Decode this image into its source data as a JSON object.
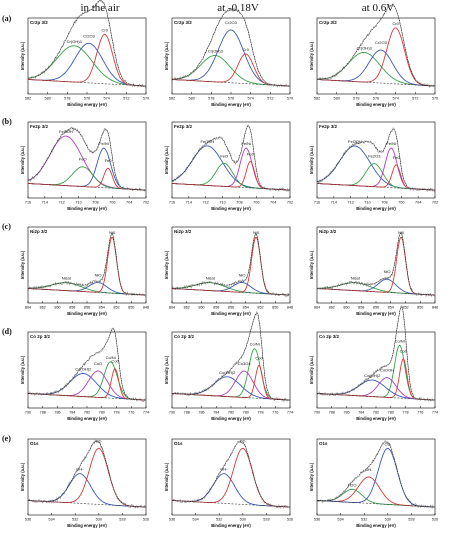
{
  "columns": [
    "in the air",
    "at -0.18V",
    "at 0.6V"
  ],
  "rows": [
    {
      "label": "(a)",
      "panel_title": "Cr2p 3/2"
    },
    {
      "label": "(b)",
      "panel_title": "Fe2p 3/2"
    },
    {
      "label": "(c)",
      "panel_title": "Ni2p 3/2"
    },
    {
      "label": "(d)",
      "panel_title": "Co 2p 3/2"
    },
    {
      "label": "(e)",
      "panel_title": "O1s"
    }
  ],
  "axis": {
    "ylabel": "Intensity (a.u.)",
    "xlabel": "Binding energy (eV)"
  },
  "colors": {
    "raw": "#8a8a8a",
    "fit": "#000000",
    "green": "#3aa04a",
    "red": "#d83a3a",
    "blue": "#3a5ab8",
    "purple": "#b040c0",
    "background": "#3a3a3a"
  },
  "chart_data": [
    {
      "type": "line",
      "row": "(a)",
      "column": "in the air",
      "title": "Cr2p 3/2",
      "xlim": [
        582,
        570
      ],
      "xticks": [
        582,
        580,
        578,
        576,
        574,
        572,
        570
      ],
      "xlabel": "Binding energy (eV)",
      "ylabel": "Intensity (a.u.)",
      "peaks": [
        {
          "name": "Cr(OH)3",
          "center": 577.3,
          "height": 0.55,
          "width": 1.8,
          "color": "green"
        },
        {
          "name": "Cr2O3",
          "center": 575.8,
          "height": 0.6,
          "width": 1.4,
          "color": "blue"
        },
        {
          "name": "Cr0",
          "center": 574.2,
          "height": 0.75,
          "width": 0.8,
          "color": "red"
        }
      ]
    },
    {
      "type": "line",
      "row": "(a)",
      "column": "at -0.18V",
      "title": "Cr2p 3/2",
      "xlim": [
        582,
        570
      ],
      "xticks": [
        582,
        580,
        578,
        576,
        574,
        572,
        570
      ],
      "xlabel": "Binding energy (eV)",
      "ylabel": "Intensity (a.u.)",
      "peaks": [
        {
          "name": "Cr(OH)3",
          "center": 577.6,
          "height": 0.4,
          "width": 1.5,
          "color": "green"
        },
        {
          "name": "Cr2O3",
          "center": 576.0,
          "height": 0.8,
          "width": 1.3,
          "color": "blue"
        },
        {
          "name": "Cr0",
          "center": 574.5,
          "height": 0.45,
          "width": 0.8,
          "color": "red"
        }
      ]
    },
    {
      "type": "line",
      "row": "(a)",
      "column": "at 0.6V",
      "title": "Cr2p 3/2",
      "xlim": [
        582,
        570
      ],
      "xticks": [
        582,
        580,
        578,
        576,
        574,
        572,
        570
      ],
      "xlabel": "Binding energy (eV)",
      "ylabel": "Intensity (a.u.)",
      "peaks": [
        {
          "name": "Cr(OH)3",
          "center": 577.2,
          "height": 0.45,
          "width": 1.6,
          "color": "green"
        },
        {
          "name": "Cr2O3",
          "center": 575.5,
          "height": 0.5,
          "width": 1.2,
          "color": "blue"
        },
        {
          "name": "Cr0",
          "center": 574.0,
          "height": 0.85,
          "width": 0.9,
          "color": "red"
        }
      ]
    },
    {
      "type": "line",
      "row": "(b)",
      "column": "in the air",
      "title": "Fe2p 3/2",
      "xlim": [
        716,
        702
      ],
      "xticks": [
        716,
        714,
        712,
        710,
        708,
        706,
        704,
        702
      ],
      "xlabel": "Binding energy (eV)",
      "ylabel": "Intensity (a.u.)",
      "peaks": [
        {
          "name": "FeOOH",
          "center": 711.5,
          "height": 0.75,
          "width": 1.9,
          "color": "purple"
        },
        {
          "name": "FeO",
          "center": 709.5,
          "height": 0.3,
          "width": 1.2,
          "color": "green"
        },
        {
          "name": "Fe/Ni",
          "center": 707.0,
          "height": 0.6,
          "width": 0.8,
          "color": "blue"
        },
        {
          "name": "Fe0",
          "center": 706.5,
          "height": 0.3,
          "width": 0.5,
          "color": "red"
        }
      ]
    },
    {
      "type": "line",
      "row": "(b)",
      "column": "at -0.18V",
      "title": "Fe2p 3/2",
      "xlim": [
        716,
        702
      ],
      "xticks": [
        716,
        714,
        712,
        710,
        708,
        706,
        704,
        702
      ],
      "xlabel": "Binding energy (eV)",
      "ylabel": "Intensity (a.u.)",
      "peaks": [
        {
          "name": "FeOOH",
          "center": 711.8,
          "height": 0.6,
          "width": 1.8,
          "color": "blue"
        },
        {
          "name": "FeO",
          "center": 709.8,
          "height": 0.35,
          "width": 1.0,
          "color": "green"
        },
        {
          "name": "Fe/Ni",
          "center": 707.2,
          "height": 0.6,
          "width": 0.7,
          "color": "purple"
        },
        {
          "name": "Fe0",
          "center": 706.7,
          "height": 0.4,
          "width": 0.5,
          "color": "red"
        }
      ]
    },
    {
      "type": "line",
      "row": "(b)",
      "column": "at 0.6V",
      "title": "Fe2p 3/2",
      "xlim": [
        716,
        702
      ],
      "xticks": [
        716,
        714,
        712,
        710,
        708,
        706,
        704,
        702
      ],
      "xlabel": "Binding energy (eV)",
      "ylabel": "Intensity (a.u.)",
      "peaks": [
        {
          "name": "FeOOH",
          "center": 711.5,
          "height": 0.6,
          "width": 1.8,
          "color": "blue"
        },
        {
          "name": "Fe2O3",
          "center": 709.2,
          "height": 0.35,
          "width": 1.0,
          "color": "green"
        },
        {
          "name": "Fe/Ni",
          "center": 707.2,
          "height": 0.6,
          "width": 0.7,
          "color": "purple"
        },
        {
          "name": "Fe0",
          "center": 706.6,
          "height": 0.35,
          "width": 0.5,
          "color": "red"
        }
      ]
    },
    {
      "type": "line",
      "row": "(c)",
      "column": "in the air",
      "title": "Ni2p 3/2",
      "xlim": [
        864,
        848
      ],
      "xticks": [
        864,
        862,
        860,
        858,
        856,
        854,
        852,
        850,
        848
      ],
      "xlabel": "Binding energy (eV)",
      "ylabel": "Intensity (a.u.)",
      "peaks": [
        {
          "name": "Nisat",
          "center": 858.8,
          "height": 0.12,
          "width": 2.0,
          "color": "green"
        },
        {
          "name": "NiO",
          "center": 854.5,
          "height": 0.15,
          "width": 1.2,
          "color": "blue"
        },
        {
          "name": "Ni0",
          "center": 852.6,
          "height": 0.85,
          "width": 0.6,
          "color": "red"
        }
      ]
    },
    {
      "type": "line",
      "row": "(c)",
      "column": "at -0.18V",
      "title": "Ni2p 3/2",
      "xlim": [
        864,
        848
      ],
      "xticks": [
        864,
        862,
        860,
        858,
        856,
        854,
        852,
        850,
        848
      ],
      "xlabel": "Binding energy (eV)",
      "ylabel": "Intensity (a.u.)",
      "peaks": [
        {
          "name": "Nisat",
          "center": 858.8,
          "height": 0.12,
          "width": 2.0,
          "color": "green"
        },
        {
          "name": "NiO",
          "center": 854.5,
          "height": 0.15,
          "width": 1.2,
          "color": "blue"
        },
        {
          "name": "Ni0",
          "center": 852.6,
          "height": 0.85,
          "width": 0.6,
          "color": "red"
        }
      ]
    },
    {
      "type": "line",
      "row": "(c)",
      "column": "at 0.6V",
      "title": "Ni2p 3/2",
      "xlim": [
        864,
        848
      ],
      "xticks": [
        864,
        862,
        860,
        858,
        856,
        854,
        852,
        850,
        848
      ],
      "xlabel": "Binding energy (eV)",
      "ylabel": "Intensity (a.u.)",
      "peaks": [
        {
          "name": "Nisat",
          "center": 858.8,
          "height": 0.12,
          "width": 2.0,
          "color": "green"
        },
        {
          "name": "NiO",
          "center": 854.5,
          "height": 0.2,
          "width": 1.2,
          "color": "blue"
        },
        {
          "name": "Ni0",
          "center": 852.6,
          "height": 0.85,
          "width": 0.6,
          "color": "red"
        }
      ]
    },
    {
      "type": "line",
      "row": "(d)",
      "column": "in the air",
      "title": "Co 2p 3/2",
      "xlim": [
        790,
        774
      ],
      "xticks": [
        790,
        788,
        786,
        784,
        782,
        780,
        778,
        776,
        774
      ],
      "xlabel": "Binding energy (eV)",
      "ylabel": "Intensity (a.u.)",
      "peaks": [
        {
          "name": "Co(OH)2",
          "center": 782.5,
          "height": 0.35,
          "width": 1.8,
          "color": "blue"
        },
        {
          "name": "CoO",
          "center": 780.5,
          "height": 0.4,
          "width": 1.3,
          "color": "purple"
        },
        {
          "name": "Co/Ni",
          "center": 778.8,
          "height": 0.55,
          "width": 0.9,
          "color": "green"
        },
        {
          "name": "Co0",
          "center": 778.2,
          "height": 0.45,
          "width": 0.5,
          "color": "red"
        }
      ]
    },
    {
      "type": "line",
      "row": "(d)",
      "column": "at -0.18V",
      "title": "Co 2p 3/2",
      "xlim": [
        790,
        774
      ],
      "xticks": [
        790,
        788,
        786,
        784,
        782,
        780,
        778,
        776,
        774
      ],
      "xlabel": "Binding energy (eV)",
      "ylabel": "Intensity (a.u.)",
      "peaks": [
        {
          "name": "Co(OH)2",
          "center": 782.5,
          "height": 0.3,
          "width": 1.8,
          "color": "blue"
        },
        {
          "name": "Co3O4",
          "center": 780.2,
          "height": 0.4,
          "width": 1.2,
          "color": "purple"
        },
        {
          "name": "Co/Ni",
          "center": 778.8,
          "height": 0.75,
          "width": 0.8,
          "color": "green"
        },
        {
          "name": "Co0",
          "center": 778.2,
          "height": 0.5,
          "width": 0.5,
          "color": "red"
        }
      ]
    },
    {
      "type": "line",
      "row": "(d)",
      "column": "at 0.6V",
      "title": "Co 2p 3/2",
      "xlim": [
        790,
        774
      ],
      "xticks": [
        790,
        788,
        786,
        784,
        782,
        780,
        778,
        776,
        774
      ],
      "xlabel": "Binding energy (eV)",
      "ylabel": "Intensity (a.u.)",
      "peaks": [
        {
          "name": "Co(OH)2",
          "center": 782.5,
          "height": 0.25,
          "width": 1.8,
          "color": "blue"
        },
        {
          "name": "CoOOH",
          "center": 780.5,
          "height": 0.3,
          "width": 1.2,
          "color": "purple"
        },
        {
          "name": "Co/Ni",
          "center": 778.8,
          "height": 0.8,
          "width": 0.7,
          "color": "green"
        },
        {
          "name": "Co0",
          "center": 778.3,
          "height": 0.6,
          "width": 0.5,
          "color": "red"
        }
      ]
    },
    {
      "type": "line",
      "row": "(e)",
      "column": "in the air",
      "title": "O1s",
      "xlim": [
        536,
        526
      ],
      "xticks": [
        536,
        534,
        532,
        530,
        528,
        526
      ],
      "xlabel": "Binding energy (eV)",
      "ylabel": "Intensity (a.u.)",
      "peaks": [
        {
          "name": "OH-",
          "center": 531.6,
          "height": 0.45,
          "width": 0.9,
          "color": "blue"
        },
        {
          "name": "O2-",
          "center": 530.0,
          "height": 0.85,
          "width": 0.8,
          "color": "red"
        }
      ]
    },
    {
      "type": "line",
      "row": "(e)",
      "column": "at -0.18V",
      "title": "O1s",
      "xlim": [
        536,
        526
      ],
      "xticks": [
        536,
        534,
        532,
        530,
        528,
        526
      ],
      "xlabel": "Binding energy (eV)",
      "ylabel": "Intensity (a.u.)",
      "peaks": [
        {
          "name": "OH-",
          "center": 531.6,
          "height": 0.45,
          "width": 0.9,
          "color": "blue"
        },
        {
          "name": "O2-",
          "center": 530.0,
          "height": 0.85,
          "width": 0.8,
          "color": "red"
        }
      ]
    },
    {
      "type": "line",
      "row": "(e)",
      "column": "at 0.6V",
      "title": "O1s",
      "xlim": [
        536,
        526
      ],
      "xticks": [
        536,
        534,
        532,
        530,
        528,
        526
      ],
      "xlabel": "Binding energy (eV)",
      "ylabel": "Intensity (a.u.)",
      "peaks": [
        {
          "name": "H2O",
          "center": 533.0,
          "height": 0.2,
          "width": 0.8,
          "color": "green"
        },
        {
          "name": "OH-",
          "center": 531.6,
          "height": 0.4,
          "width": 0.9,
          "color": "red"
        },
        {
          "name": "O2-",
          "center": 530.0,
          "height": 0.85,
          "width": 0.8,
          "color": "blue"
        }
      ]
    }
  ]
}
